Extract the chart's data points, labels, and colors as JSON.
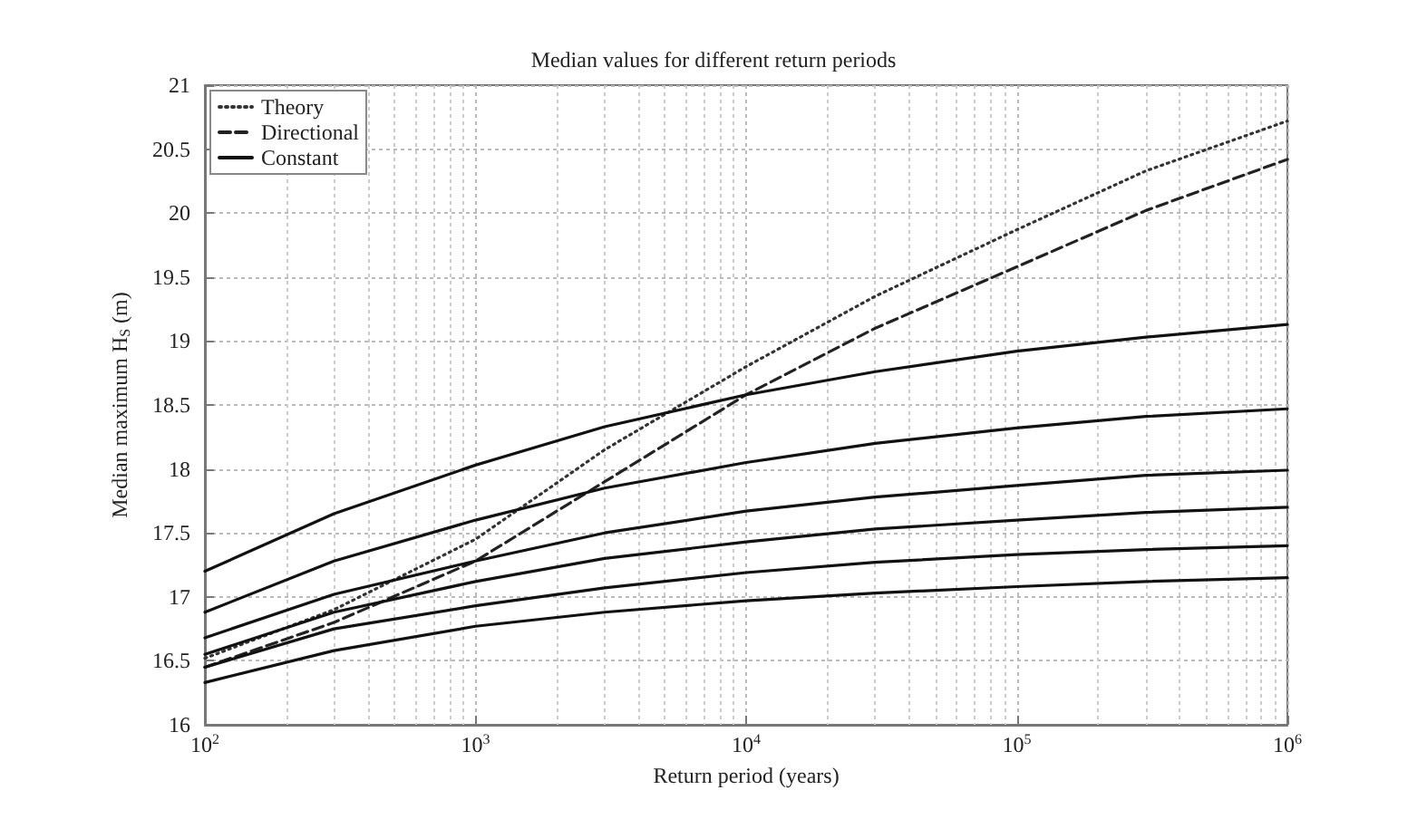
{
  "chart_data": {
    "type": "line",
    "title": "Median values for different return periods",
    "xlabel": "Return period (years)",
    "ylabel": "Median maximum H$_{S}$ (m)",
    "x": [
      100,
      300,
      1000,
      3000,
      10000,
      30000,
      100000,
      300000,
      1000000
    ],
    "log": "x",
    "grid": true,
    "legend": "top left",
    "marker": "none",
    "xlim": [
      100,
      1000000
    ],
    "xticks": [
      {
        "value": 100,
        "label": "10$^{2}$"
      },
      {
        "value": 1000,
        "label": "10$^{3}$"
      },
      {
        "value": 10000,
        "label": "10$^{4}$"
      },
      {
        "value": 100000,
        "label": "10$^{5}$"
      },
      {
        "value": 1000000,
        "label": "10$^{6}$"
      }
    ],
    "ylim": [
      16,
      21
    ],
    "yticks": [
      16,
      16.5,
      17,
      17.5,
      18,
      18.5,
      19,
      19.5,
      20,
      20.5,
      21
    ],
    "series": [
      {
        "name": "Theory",
        "color": "#333333",
        "line_style": "dotted",
        "values": [
          16.52,
          16.9,
          17.45,
          18.15,
          18.8,
          19.35,
          19.87,
          20.33,
          20.72
        ]
      },
      {
        "name": "Directional",
        "color": "#222222",
        "line_style": "dashed",
        "values": [
          16.45,
          16.8,
          17.28,
          17.9,
          18.58,
          19.1,
          19.58,
          20.02,
          20.42
        ]
      },
      {
        "name": "Constant",
        "color": "#111111",
        "line_style": "solid",
        "values": [
          17.2,
          17.65,
          18.03,
          18.33,
          18.58,
          18.76,
          18.92,
          19.03,
          19.13
        ]
      },
      {
        "color": "#111111",
        "line_style": "solid",
        "values": [
          16.88,
          17.28,
          17.6,
          17.85,
          18.05,
          18.2,
          18.32,
          18.41,
          18.47
        ]
      },
      {
        "color": "#111111",
        "line_style": "solid",
        "values": [
          16.68,
          17.02,
          17.28,
          17.5,
          17.67,
          17.78,
          17.87,
          17.95,
          17.99
        ]
      },
      {
        "color": "#111111",
        "line_style": "solid",
        "values": [
          16.55,
          16.88,
          17.12,
          17.3,
          17.43,
          17.53,
          17.6,
          17.66,
          17.7
        ]
      },
      {
        "color": "#111111",
        "line_style": "solid",
        "values": [
          16.45,
          16.75,
          16.93,
          17.07,
          17.19,
          17.27,
          17.33,
          17.37,
          17.4
        ]
      },
      {
        "color": "#111111",
        "line_style": "solid",
        "values": [
          16.33,
          16.58,
          16.77,
          16.88,
          16.97,
          17.03,
          17.08,
          17.12,
          17.15
        ]
      }
    ]
  }
}
